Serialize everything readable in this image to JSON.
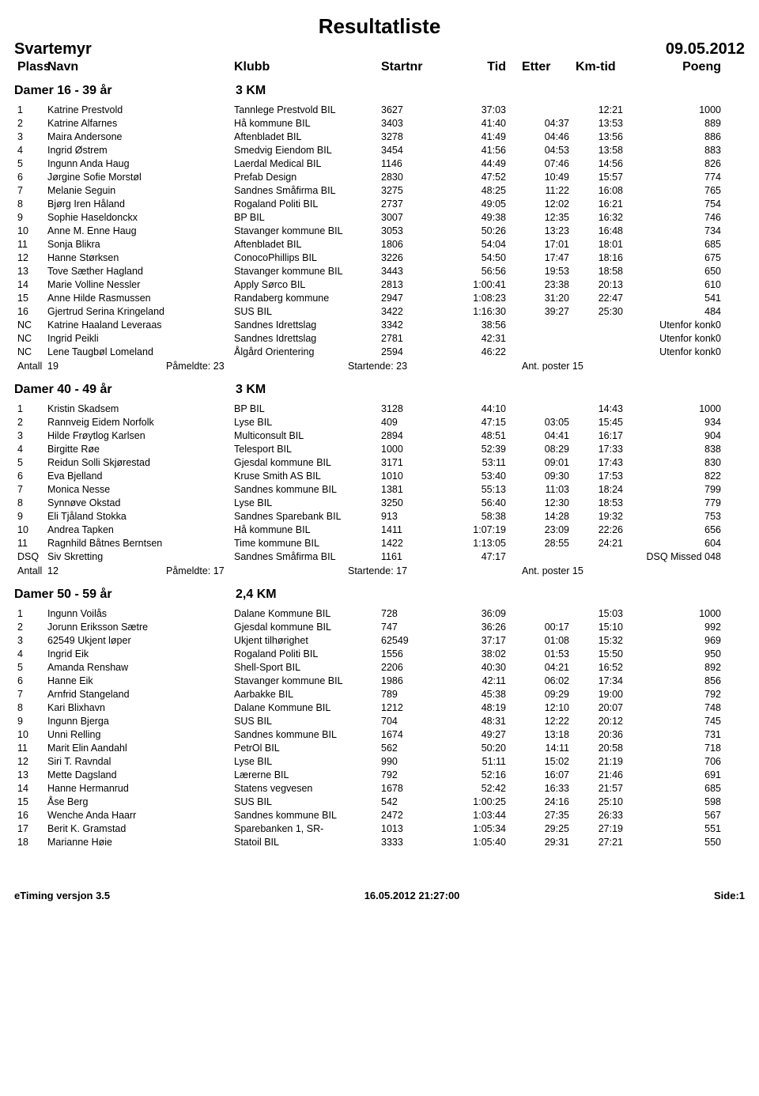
{
  "title": "Resultatliste",
  "event": "Svartemyr",
  "date": "09.05.2012",
  "columns": {
    "plass": "Plass",
    "navn": "Navn",
    "klubb": "Klubb",
    "startnr": "Startnr",
    "tid": "Tid",
    "etter": "Etter",
    "kmtid": "Km-tid",
    "poeng": "Poeng"
  },
  "summary_labels": {
    "antall": "Antall",
    "pameldte": "Påmeldte:",
    "startende": "Startende:",
    "poster": "Ant. poster"
  },
  "groups": [
    {
      "name": "Damer 16 - 39 år",
      "distance": "3 KM",
      "rows": [
        {
          "plass": "1",
          "navn": "Katrine Prestvold",
          "klubb": "Tannlege Prestvold BIL",
          "startnr": "3627",
          "tid": "37:03",
          "etter": "",
          "kmtid": "12:21",
          "poeng": "1000"
        },
        {
          "plass": "2",
          "navn": "Katrine Alfarnes",
          "klubb": "Hå kommune BIL",
          "startnr": "3403",
          "tid": "41:40",
          "etter": "04:37",
          "kmtid": "13:53",
          "poeng": "889"
        },
        {
          "plass": "3",
          "navn": "Maira Andersone",
          "klubb": "Aftenbladet BIL",
          "startnr": "3278",
          "tid": "41:49",
          "etter": "04:46",
          "kmtid": "13:56",
          "poeng": "886"
        },
        {
          "plass": "4",
          "navn": "Ingrid Østrem",
          "klubb": "Smedvig Eiendom BIL",
          "startnr": "3454",
          "tid": "41:56",
          "etter": "04:53",
          "kmtid": "13:58",
          "poeng": "883"
        },
        {
          "plass": "5",
          "navn": "Ingunn Anda Haug",
          "klubb": "Laerdal Medical BIL",
          "startnr": "1146",
          "tid": "44:49",
          "etter": "07:46",
          "kmtid": "14:56",
          "poeng": "826"
        },
        {
          "plass": "6",
          "navn": "Jørgine Sofie Morstøl",
          "klubb": "Prefab Design",
          "startnr": "2830",
          "tid": "47:52",
          "etter": "10:49",
          "kmtid": "15:57",
          "poeng": "774"
        },
        {
          "plass": "7",
          "navn": "Melanie Seguin",
          "klubb": "Sandnes Småfirma BIL",
          "startnr": "3275",
          "tid": "48:25",
          "etter": "11:22",
          "kmtid": "16:08",
          "poeng": "765"
        },
        {
          "plass": "8",
          "navn": "Bjørg Iren Håland",
          "klubb": "Rogaland Politi BIL",
          "startnr": "2737",
          "tid": "49:05",
          "etter": "12:02",
          "kmtid": "16:21",
          "poeng": "754"
        },
        {
          "plass": "9",
          "navn": "Sophie Haseldonckx",
          "klubb": "BP BIL",
          "startnr": "3007",
          "tid": "49:38",
          "etter": "12:35",
          "kmtid": "16:32",
          "poeng": "746"
        },
        {
          "plass": "10",
          "navn": "Anne M. Enne Haug",
          "klubb": "Stavanger kommune BIL",
          "startnr": "3053",
          "tid": "50:26",
          "etter": "13:23",
          "kmtid": "16:48",
          "poeng": "734"
        },
        {
          "plass": "11",
          "navn": "Sonja Blikra",
          "klubb": "Aftenbladet BIL",
          "startnr": "1806",
          "tid": "54:04",
          "etter": "17:01",
          "kmtid": "18:01",
          "poeng": "685"
        },
        {
          "plass": "12",
          "navn": "Hanne Størksen",
          "klubb": "ConocoPhillips BIL",
          "startnr": "3226",
          "tid": "54:50",
          "etter": "17:47",
          "kmtid": "18:16",
          "poeng": "675"
        },
        {
          "plass": "13",
          "navn": "Tove Sæther Hagland",
          "klubb": "Stavanger kommune BIL",
          "startnr": "3443",
          "tid": "56:56",
          "etter": "19:53",
          "kmtid": "18:58",
          "poeng": "650"
        },
        {
          "plass": "14",
          "navn": "Marie Volline Nessler",
          "klubb": "Apply Sørco BIL",
          "startnr": "2813",
          "tid": "1:00:41",
          "etter": "23:38",
          "kmtid": "20:13",
          "poeng": "610"
        },
        {
          "plass": "15",
          "navn": "Anne Hilde Rasmussen",
          "klubb": "Randaberg kommune",
          "startnr": "2947",
          "tid": "1:08:23",
          "etter": "31:20",
          "kmtid": "22:47",
          "poeng": "541"
        },
        {
          "plass": "16",
          "navn": "Gjertrud Serina Kringeland",
          "klubb": "SUS BIL",
          "startnr": "3422",
          "tid": "1:16:30",
          "etter": "39:27",
          "kmtid": "25:30",
          "poeng": "484"
        },
        {
          "plass": "NC",
          "navn": "Katrine Haaland Leveraas",
          "klubb": "Sandnes Idrettslag",
          "startnr": "3342",
          "tid": "38:56",
          "etter": "",
          "kmtid": "",
          "poeng": "Utenfor konk0"
        },
        {
          "plass": "NC",
          "navn": "Ingrid Peikli",
          "klubb": "Sandnes Idrettslag",
          "startnr": "2781",
          "tid": "42:31",
          "etter": "",
          "kmtid": "",
          "poeng": "Utenfor konk0"
        },
        {
          "plass": "NC",
          "navn": "Lene Taugbøl Lomeland",
          "klubb": "Ålgård Orientering",
          "startnr": "2594",
          "tid": "46:22",
          "etter": "",
          "kmtid": "",
          "poeng": "Utenfor konk0"
        }
      ],
      "summary": {
        "antall": "19",
        "pameldte": "23",
        "startende": "23",
        "poster": "15"
      }
    },
    {
      "name": "Damer 40 - 49 år",
      "distance": "3 KM",
      "rows": [
        {
          "plass": "1",
          "navn": "Kristin Skadsem",
          "klubb": "BP BIL",
          "startnr": "3128",
          "tid": "44:10",
          "etter": "",
          "kmtid": "14:43",
          "poeng": "1000"
        },
        {
          "plass": "2",
          "navn": "Rannveig Eidem Norfolk",
          "klubb": "Lyse BIL",
          "startnr": "409",
          "tid": "47:15",
          "etter": "03:05",
          "kmtid": "15:45",
          "poeng": "934"
        },
        {
          "plass": "3",
          "navn": "Hilde Frøytlog Karlsen",
          "klubb": "Multiconsult BIL",
          "startnr": "2894",
          "tid": "48:51",
          "etter": "04:41",
          "kmtid": "16:17",
          "poeng": "904"
        },
        {
          "plass": "4",
          "navn": "Birgitte Røe",
          "klubb": "Telesport BIL",
          "startnr": "1000",
          "tid": "52:39",
          "etter": "08:29",
          "kmtid": "17:33",
          "poeng": "838"
        },
        {
          "plass": "5",
          "navn": "Reidun Solli Skjørestad",
          "klubb": "Gjesdal kommune BIL",
          "startnr": "3171",
          "tid": "53:11",
          "etter": "09:01",
          "kmtid": "17:43",
          "poeng": "830"
        },
        {
          "plass": "6",
          "navn": "Eva Bjelland",
          "klubb": "Kruse Smith AS BIL",
          "startnr": "1010",
          "tid": "53:40",
          "etter": "09:30",
          "kmtid": "17:53",
          "poeng": "822"
        },
        {
          "plass": "7",
          "navn": "Monica Nesse",
          "klubb": "Sandnes kommune BIL",
          "startnr": "1381",
          "tid": "55:13",
          "etter": "11:03",
          "kmtid": "18:24",
          "poeng": "799"
        },
        {
          "plass": "8",
          "navn": "Synnøve Okstad",
          "klubb": "Lyse BIL",
          "startnr": "3250",
          "tid": "56:40",
          "etter": "12:30",
          "kmtid": "18:53",
          "poeng": "779"
        },
        {
          "plass": "9",
          "navn": "Eli Tjåland Stokka",
          "klubb": "Sandnes Sparebank BIL",
          "startnr": "913",
          "tid": "58:38",
          "etter": "14:28",
          "kmtid": "19:32",
          "poeng": "753"
        },
        {
          "plass": "10",
          "navn": "Andrea Tapken",
          "klubb": "Hå kommune BIL",
          "startnr": "1411",
          "tid": "1:07:19",
          "etter": "23:09",
          "kmtid": "22:26",
          "poeng": "656"
        },
        {
          "plass": "11",
          "navn": "Ragnhild Båtnes Berntsen",
          "klubb": "Time kommune BIL",
          "startnr": "1422",
          "tid": "1:13:05",
          "etter": "28:55",
          "kmtid": "24:21",
          "poeng": "604"
        },
        {
          "plass": "DSQ",
          "navn": "Siv Skretting",
          "klubb": "Sandnes Småfirma BIL",
          "startnr": "1161",
          "tid": "47:17",
          "etter": "",
          "kmtid": "",
          "poeng": "DSQ Missed 048"
        }
      ],
      "summary": {
        "antall": "12",
        "pameldte": "17",
        "startende": "17",
        "poster": "15"
      }
    },
    {
      "name": "Damer 50 - 59 år",
      "distance": "2,4 KM",
      "rows": [
        {
          "plass": "1",
          "navn": "Ingunn Voilås",
          "klubb": "Dalane Kommune BIL",
          "startnr": "728",
          "tid": "36:09",
          "etter": "",
          "kmtid": "15:03",
          "poeng": "1000"
        },
        {
          "plass": "2",
          "navn": "Jorunn Eriksson Sætre",
          "klubb": "Gjesdal kommune BIL",
          "startnr": "747",
          "tid": "36:26",
          "etter": "00:17",
          "kmtid": "15:10",
          "poeng": "992"
        },
        {
          "plass": "3",
          "navn": "62549 Ukjent løper",
          "klubb": "Ukjent tilhørighet",
          "startnr": "62549",
          "tid": "37:17",
          "etter": "01:08",
          "kmtid": "15:32",
          "poeng": "969"
        },
        {
          "plass": "4",
          "navn": "Ingrid Eik",
          "klubb": "Rogaland Politi BIL",
          "startnr": "1556",
          "tid": "38:02",
          "etter": "01:53",
          "kmtid": "15:50",
          "poeng": "950"
        },
        {
          "plass": "5",
          "navn": "Amanda Renshaw",
          "klubb": "Shell-Sport BIL",
          "startnr": "2206",
          "tid": "40:30",
          "etter": "04:21",
          "kmtid": "16:52",
          "poeng": "892"
        },
        {
          "plass": "6",
          "navn": "Hanne Eik",
          "klubb": "Stavanger kommune BIL",
          "startnr": "1986",
          "tid": "42:11",
          "etter": "06:02",
          "kmtid": "17:34",
          "poeng": "856"
        },
        {
          "plass": "7",
          "navn": "Arnfrid Stangeland",
          "klubb": "Aarbakke BIL",
          "startnr": "789",
          "tid": "45:38",
          "etter": "09:29",
          "kmtid": "19:00",
          "poeng": "792"
        },
        {
          "plass": "8",
          "navn": "Kari Blixhavn",
          "klubb": "Dalane Kommune BIL",
          "startnr": "1212",
          "tid": "48:19",
          "etter": "12:10",
          "kmtid": "20:07",
          "poeng": "748"
        },
        {
          "plass": "9",
          "navn": "Ingunn Bjerga",
          "klubb": "SUS BIL",
          "startnr": "704",
          "tid": "48:31",
          "etter": "12:22",
          "kmtid": "20:12",
          "poeng": "745"
        },
        {
          "plass": "10",
          "navn": "Unni Relling",
          "klubb": "Sandnes kommune BIL",
          "startnr": "1674",
          "tid": "49:27",
          "etter": "13:18",
          "kmtid": "20:36",
          "poeng": "731"
        },
        {
          "plass": "11",
          "navn": "Marit Elin Aandahl",
          "klubb": "PetrOl BIL",
          "startnr": "562",
          "tid": "50:20",
          "etter": "14:11",
          "kmtid": "20:58",
          "poeng": "718"
        },
        {
          "plass": "12",
          "navn": "Siri T. Ravndal",
          "klubb": "Lyse BIL",
          "startnr": "990",
          "tid": "51:11",
          "etter": "15:02",
          "kmtid": "21:19",
          "poeng": "706"
        },
        {
          "plass": "13",
          "navn": "Mette Dagsland",
          "klubb": "Lærerne BIL",
          "startnr": "792",
          "tid": "52:16",
          "etter": "16:07",
          "kmtid": "21:46",
          "poeng": "691"
        },
        {
          "plass": "14",
          "navn": "Hanne Hermanrud",
          "klubb": "Statens vegvesen",
          "startnr": "1678",
          "tid": "52:42",
          "etter": "16:33",
          "kmtid": "21:57",
          "poeng": "685"
        },
        {
          "plass": "15",
          "navn": "Åse Berg",
          "klubb": "SUS BIL",
          "startnr": "542",
          "tid": "1:00:25",
          "etter": "24:16",
          "kmtid": "25:10",
          "poeng": "598"
        },
        {
          "plass": "16",
          "navn": "Wenche Anda Haarr",
          "klubb": "Sandnes kommune BIL",
          "startnr": "2472",
          "tid": "1:03:44",
          "etter": "27:35",
          "kmtid": "26:33",
          "poeng": "567"
        },
        {
          "plass": "17",
          "navn": "Berit K. Gramstad",
          "klubb": "Sparebanken 1, SR-",
          "startnr": "1013",
          "tid": "1:05:34",
          "etter": "29:25",
          "kmtid": "27:19",
          "poeng": "551"
        },
        {
          "plass": "18",
          "navn": "Marianne Høie",
          "klubb": "Statoil BIL",
          "startnr": "3333",
          "tid": "1:05:40",
          "etter": "29:31",
          "kmtid": "27:21",
          "poeng": "550"
        }
      ]
    }
  ],
  "footer": {
    "left": "eTiming versjon 3.5",
    "center": "16.05.2012 21:27:00",
    "right": "Side:1"
  }
}
